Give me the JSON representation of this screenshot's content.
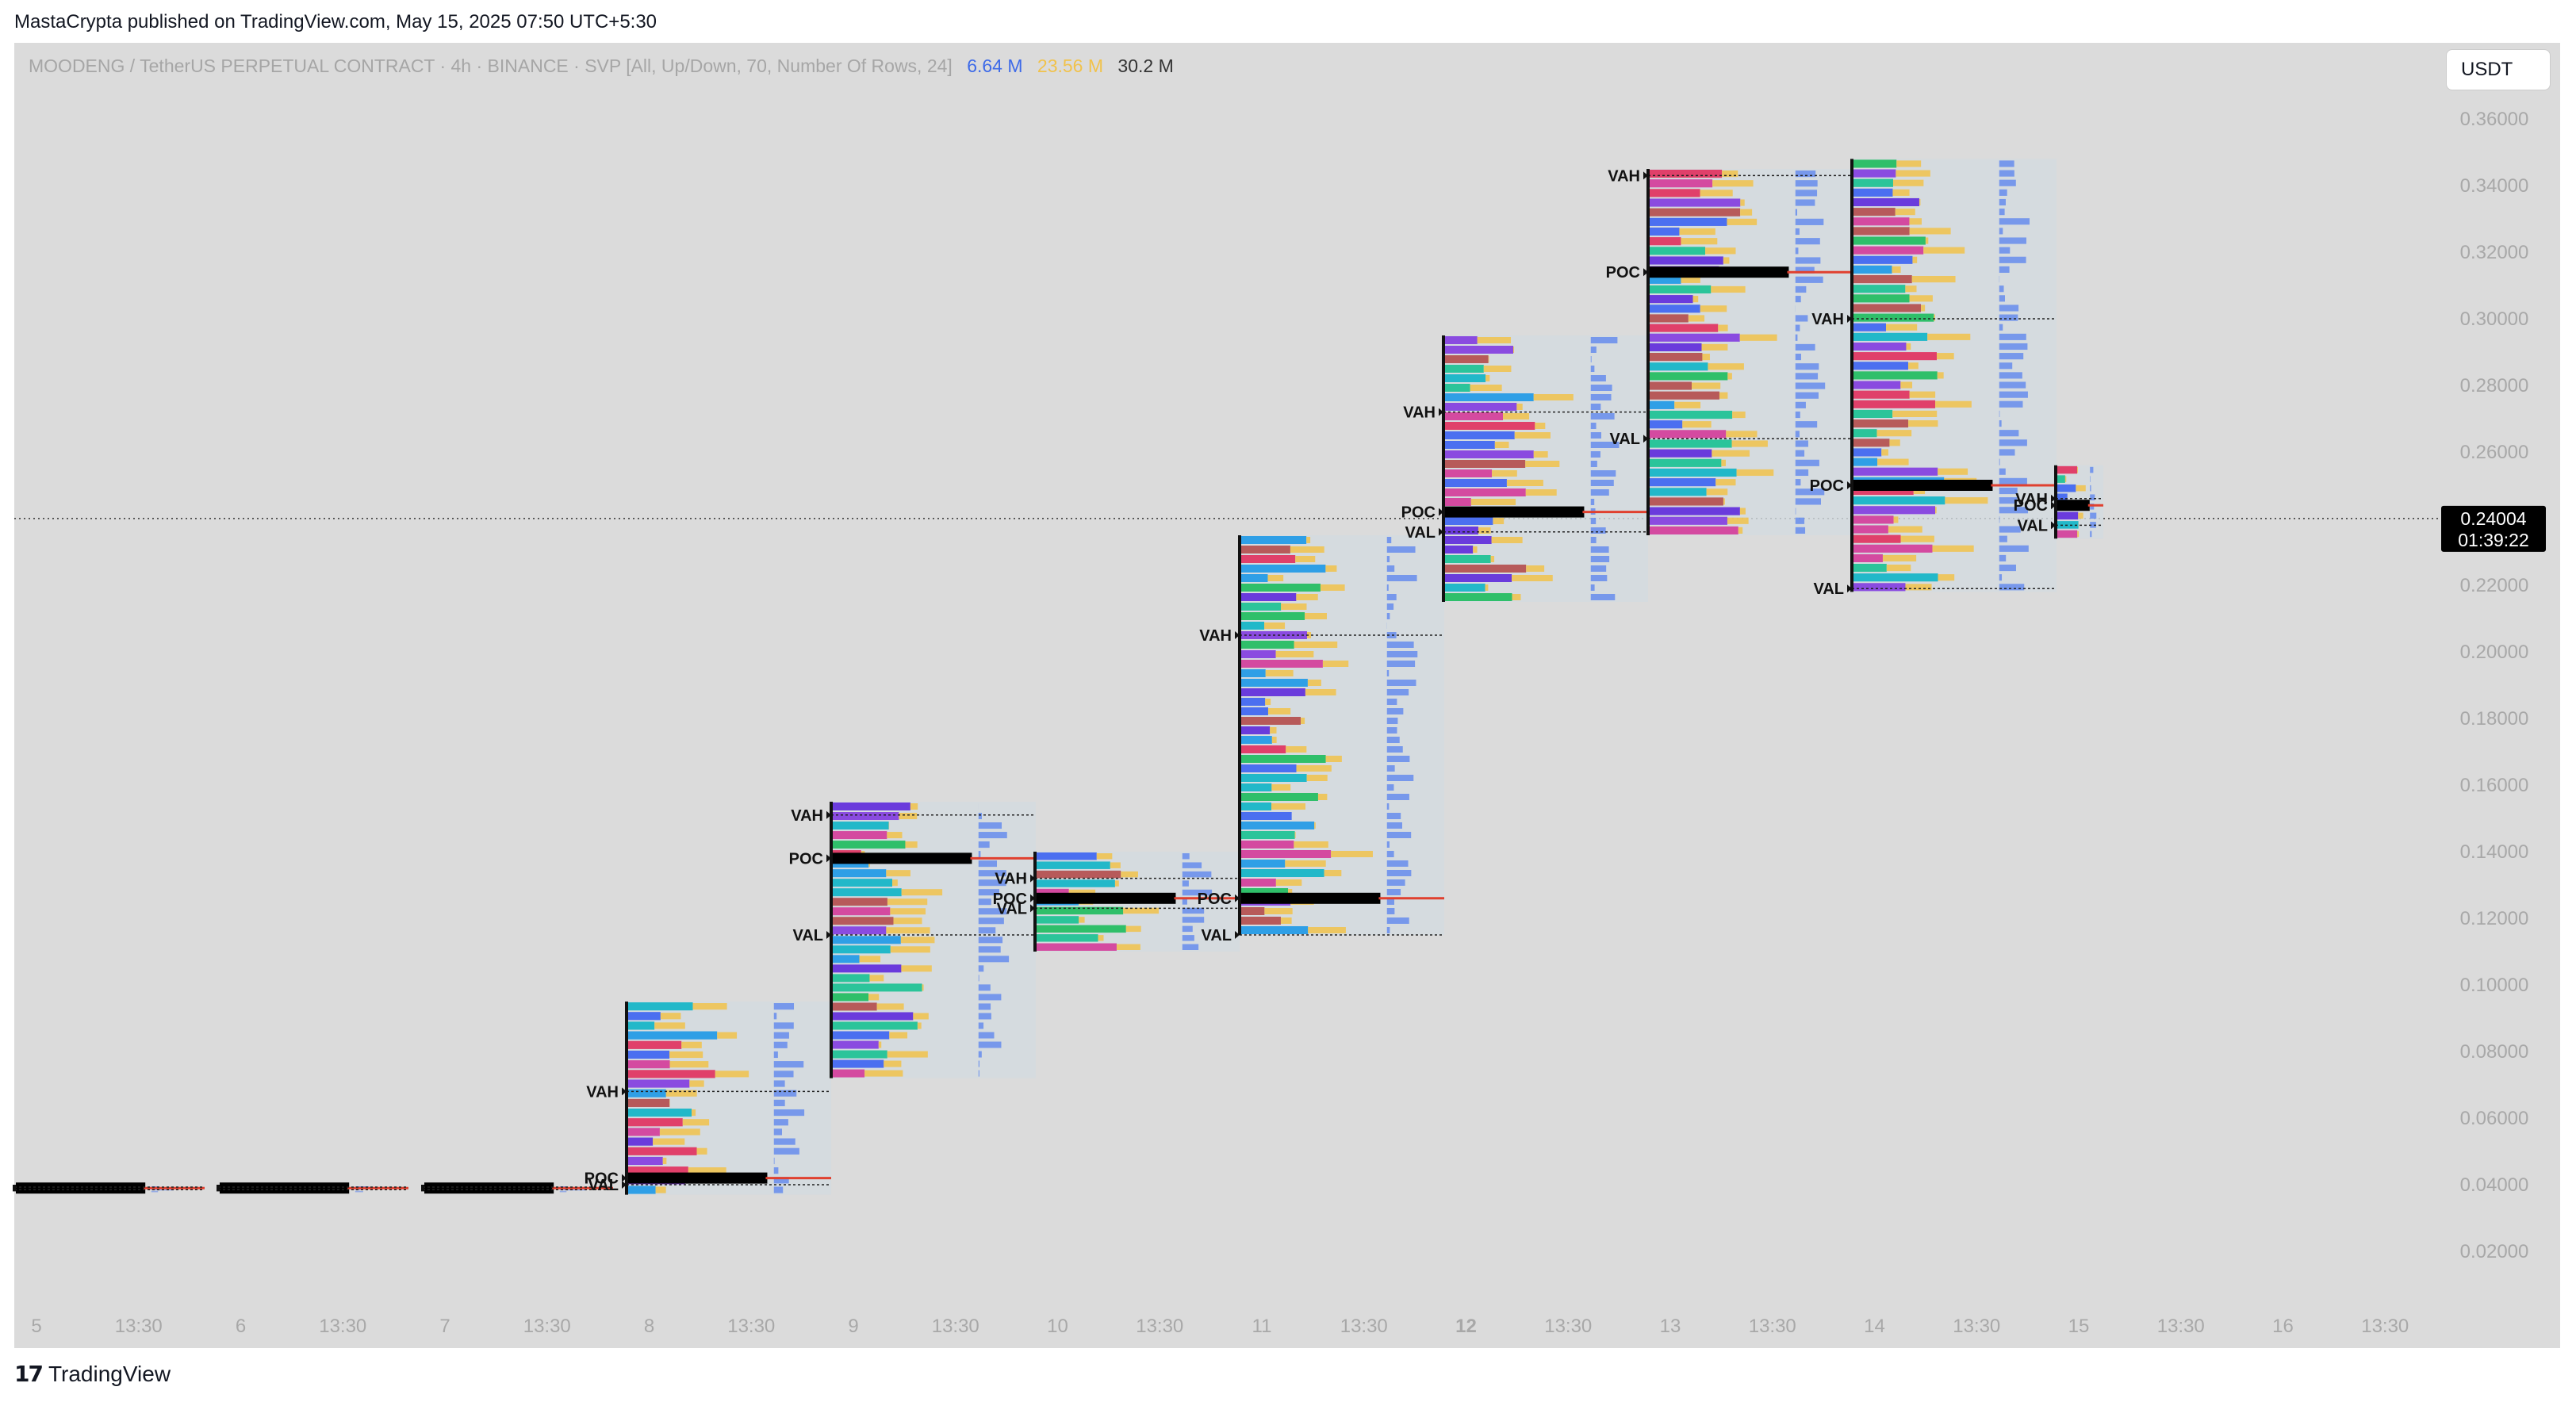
{
  "caption": "MastaCrypta published on TradingView.com, May 15, 2025 07:50 UTC+5:30",
  "legend": {
    "title": "MOODENG / TetherUS PERPETUAL CONTRACT · 4h · BINANCE · SVP [All, Up/Down, 70, Number Of Rows, 24]",
    "up_volume": "6.64 M",
    "down_volume": "23.56 M",
    "total_volume": "30.2 M"
  },
  "currency_button": "USDT",
  "brand": "TradingView",
  "price_badge": {
    "price": "0.24004",
    "countdown": "01:39:22"
  },
  "colors": {
    "background": "#dbdbdb",
    "up": "#4f7cf0",
    "down": "#f1c24b",
    "poc": "#000000",
    "last_price_badge": "#000000"
  },
  "chart_data": {
    "type": "volume_profile",
    "symbol": "MOODENG / TetherUS PERPETUAL CONTRACT",
    "timeframe": "4h",
    "exchange": "BINANCE",
    "ylim": [
      0.0,
      0.37
    ],
    "y_ticks": [
      "0.02000",
      "0.04000",
      "0.06000",
      "0.08000",
      "0.10000",
      "0.12000",
      "0.14000",
      "0.16000",
      "0.18000",
      "0.20000",
      "0.22000",
      "0.24000",
      "0.26000",
      "0.28000",
      "0.30000",
      "0.32000",
      "0.34000",
      "0.36000"
    ],
    "x_ticks": [
      "5",
      "13:30",
      "6",
      "13:30",
      "7",
      "13:30",
      "8",
      "13:30",
      "9",
      "13:30",
      "10",
      "13:30",
      "11",
      "13:30",
      "12",
      "13:30",
      "13",
      "13:30",
      "14",
      "13:30",
      "15",
      "13:30",
      "16",
      "13:30"
    ],
    "last_price": 0.24004,
    "grid": false,
    "sessions": [
      {
        "day": "5",
        "low": 0.038,
        "high": 0.04,
        "vah": 0.0393,
        "poc": 0.039,
        "val": 0.0385
      },
      {
        "day": "6",
        "low": 0.038,
        "high": 0.04,
        "vah": 0.0393,
        "poc": 0.039,
        "val": 0.0385
      },
      {
        "day": "7",
        "low": 0.038,
        "high": 0.04,
        "vah": 0.0393,
        "poc": 0.039,
        "val": 0.0385
      },
      {
        "day": "8",
        "low": 0.037,
        "high": 0.095,
        "vah": 0.068,
        "poc": 0.042,
        "val": 0.04
      },
      {
        "day": "9",
        "low": 0.072,
        "high": 0.155,
        "vah": 0.151,
        "poc": 0.138,
        "val": 0.115
      },
      {
        "day": "10",
        "low": 0.11,
        "high": 0.14,
        "vah": 0.132,
        "poc": 0.126,
        "val": 0.123
      },
      {
        "day": "11",
        "low": 0.115,
        "high": 0.235,
        "vah": 0.205,
        "poc": 0.126,
        "val": 0.115
      },
      {
        "day": "12",
        "low": 0.215,
        "high": 0.295,
        "vah": 0.272,
        "poc": 0.242,
        "val": 0.236
      },
      {
        "day": "13",
        "low": 0.235,
        "high": 0.345,
        "vah": 0.343,
        "poc": 0.314,
        "val": 0.264
      },
      {
        "day": "14",
        "low": 0.218,
        "high": 0.348,
        "vah": 0.3,
        "poc": 0.25,
        "val": 0.219
      },
      {
        "day": "15",
        "low": 0.234,
        "high": 0.256,
        "vah": 0.246,
        "poc": 0.244,
        "val": 0.238
      }
    ],
    "level_labels": [
      "VAH",
      "POC",
      "VAL"
    ]
  }
}
